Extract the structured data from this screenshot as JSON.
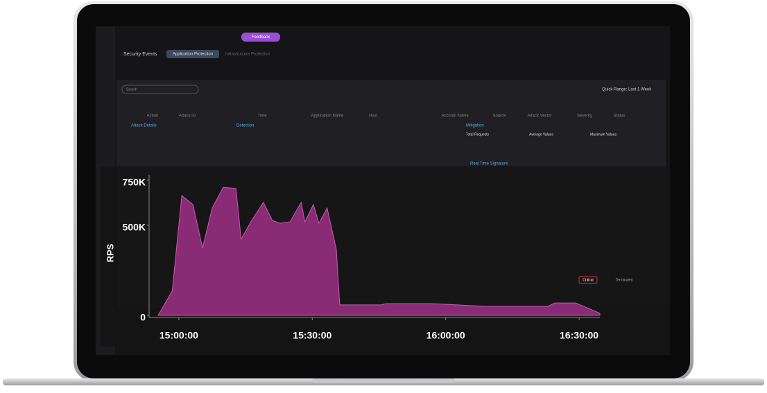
{
  "chart_data": {
    "type": "area",
    "y_label": "RPS",
    "color": "#8a2c75",
    "line_color": "#c85ab0",
    "x": [
      "14:55:20",
      "14:58:30",
      "15:00:40",
      "15:03:10",
      "15:05:20",
      "15:07:30",
      "15:10:00",
      "15:12:50",
      "15:14:00",
      "15:16:10",
      "15:19:00",
      "15:21:00",
      "15:22:45",
      "15:25:00",
      "15:27:30",
      "15:28:20",
      "15:30:15",
      "15:31:30",
      "15:33:20",
      "15:35:25",
      "15:36:10",
      "15:45:30",
      "15:46:30",
      "15:57:15",
      "16:09:00",
      "16:23:00",
      "16:24:30",
      "16:29:15",
      "16:34:40"
    ],
    "values": [
      0,
      135000,
      665000,
      615000,
      373000,
      596000,
      711000,
      704000,
      423000,
      519000,
      627000,
      527000,
      511000,
      519000,
      627000,
      519000,
      615000,
      511000,
      596000,
      365000,
      58000,
      58000,
      65000,
      65000,
      50000,
      50000,
      69000,
      69000,
      12000
    ],
    "xlim": [
      "14:55:20",
      "16:34:40"
    ],
    "xticks": [
      "15:00:00",
      "15:30:00",
      "16:00:00",
      "16:30:00"
    ],
    "ylim": [
      0,
      800000
    ],
    "yticks": [
      0,
      {
        "value": 500000,
        "label": "500K"
      },
      {
        "value": 750000,
        "label": "750K"
      }
    ]
  },
  "dashboard": {
    "feedback": "Feedback",
    "section": "Security Events",
    "tab_active": "Application Protection",
    "tab_other": "Infrastructure Protection",
    "search": "Search",
    "quick_range": "Quick Range:  Last 1 Week",
    "columns": [
      "Action",
      "Attack ID",
      "Time",
      "Application Name",
      "Host",
      "Account Name",
      "Source",
      "Attack Vector",
      "Severity",
      "Status"
    ],
    "panels": [
      "Attack Details",
      "Detection",
      "Mitigation",
      "Real Time Signature"
    ],
    "mitigation": [
      "Total Requests",
      "Average Values",
      "Maximum Values"
    ],
    "severity": "Critical",
    "status": "Terminated"
  }
}
